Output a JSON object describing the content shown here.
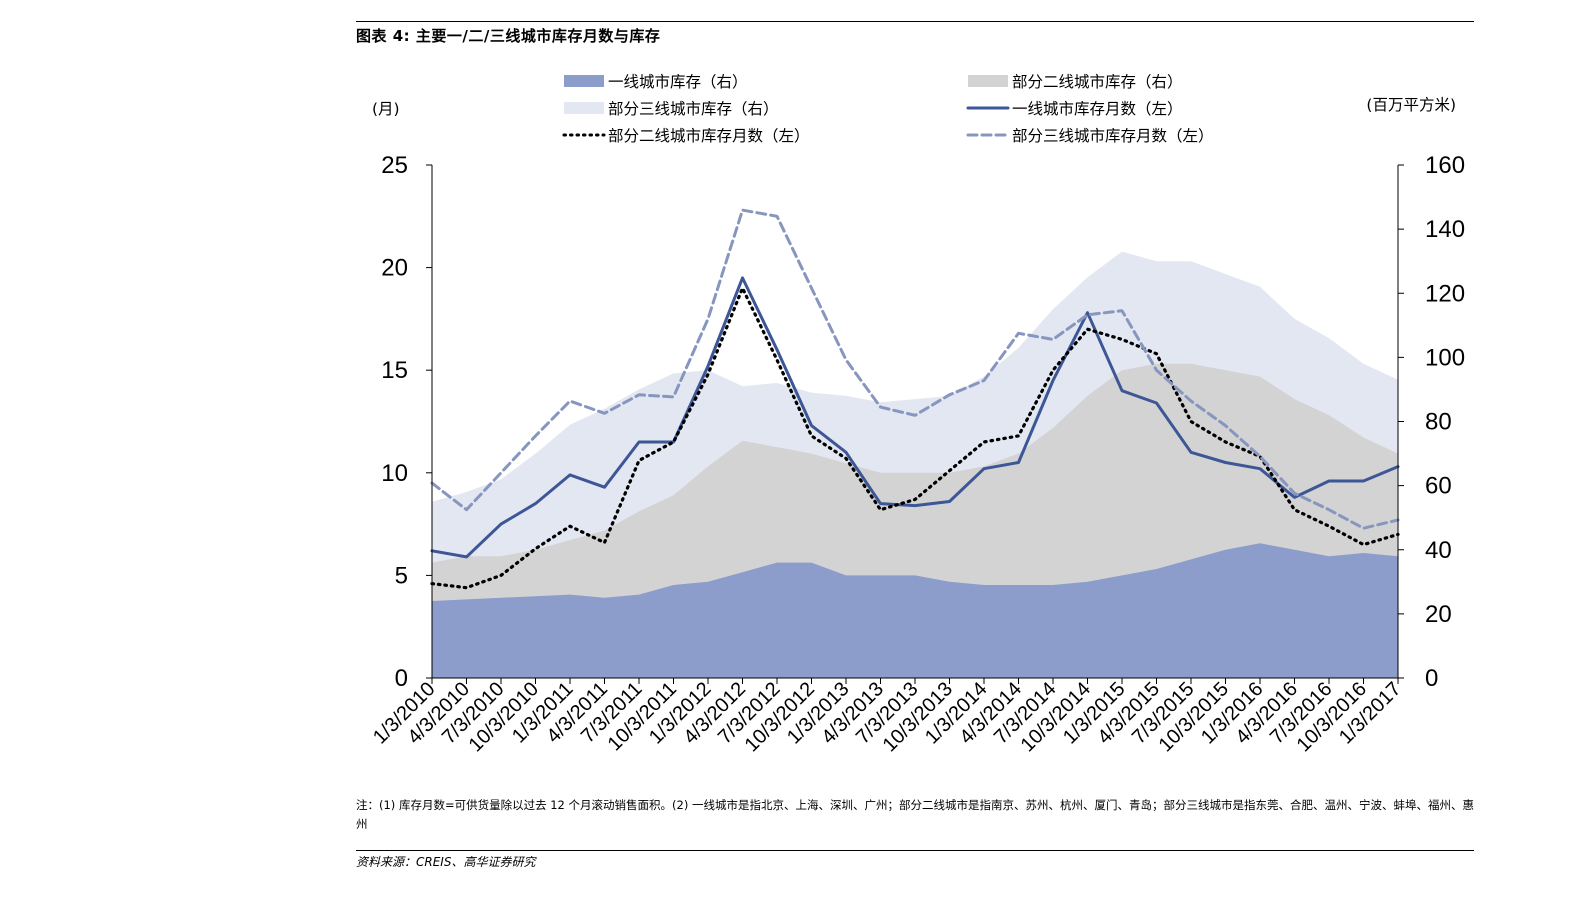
{
  "header": {
    "title": "图表 4: 主要一/二/三线城市库存月数与库存"
  },
  "footer": {
    "note": "注：(1) 库存月数=可供货量除以过去 12 个月滚动销售面积。(2) 一线城市是指北京、上海、深圳、广州；部分二线城市是指南京、苏州、杭州、厦门、青岛；部分三线城市是指东莞、合肥、温州、宁波、蚌埠、福州、惠州",
    "source": "资料来源：CREIS、高华证券研究"
  },
  "colors": {
    "tier1_area": "#8c9dcc",
    "tier2_area": "#d3d3d3",
    "tier3_area": "#e3e7f1",
    "tier1_line": "#3d5696",
    "tier2_line": "#000000",
    "tier3_line": "#8796bf",
    "axis": "#000000"
  },
  "chart_data": {
    "type": "area+line",
    "y_left_label": "(月)",
    "y_right_label": "(百万平方米)",
    "y_left_ticks": [
      "0",
      "5",
      "10",
      "15",
      "20",
      "25"
    ],
    "y_right_ticks": [
      "0",
      "20",
      "40",
      "60",
      "80",
      "100",
      "120",
      "140",
      "160"
    ],
    "ylim_left": [
      0,
      25
    ],
    "ylim_right": [
      0,
      160
    ],
    "x_tick_labels": [
      "1/3/2010",
      "4/3/2010",
      "7/3/2010",
      "10/3/2010",
      "1/3/2011",
      "4/3/2011",
      "7/3/2011",
      "10/3/2011",
      "1/3/2012",
      "4/3/2012",
      "7/3/2012",
      "10/3/2012",
      "1/3/2013",
      "4/3/2013",
      "7/3/2013",
      "10/3/2013",
      "1/3/2014",
      "4/3/2014",
      "7/3/2014",
      "10/3/2014",
      "1/3/2015",
      "4/3/2015",
      "7/3/2015",
      "10/3/2015",
      "1/3/2016",
      "4/3/2016",
      "7/3/2016",
      "10/3/2016",
      "1/3/2017"
    ],
    "x": [
      0,
      1,
      2,
      3,
      4,
      5,
      6,
      7,
      8,
      9,
      10,
      11,
      12,
      13,
      14,
      15,
      16,
      17,
      18,
      19,
      20,
      21,
      22,
      23,
      24,
      25,
      26,
      27,
      28
    ],
    "series": [
      {
        "name": "一线城市库存（右）",
        "kind": "area",
        "axis": "right",
        "values": [
          24,
          24.5,
          25,
          25.5,
          26,
          25,
          26,
          29,
          30,
          33,
          36,
          36,
          32,
          32,
          32,
          30,
          29,
          29,
          29,
          30,
          32,
          34,
          37,
          40,
          42,
          40,
          38,
          39,
          38
        ]
      },
      {
        "name": "部分二线城市库存（右）",
        "kind": "area",
        "axis": "right",
        "values": [
          36,
          38,
          38,
          40,
          43,
          46,
          52,
          57,
          66,
          74,
          72,
          70,
          67,
          64,
          64,
          64,
          66,
          70,
          78,
          88,
          96,
          98,
          98,
          96,
          94,
          87,
          82,
          75,
          70
        ]
      },
      {
        "name": "部分三线城市库存（右）",
        "kind": "area",
        "axis": "right",
        "values": [
          55,
          58,
          62,
          70,
          79,
          84,
          90,
          95,
          96,
          91,
          92,
          89,
          88,
          86,
          87,
          88,
          94,
          103,
          115,
          125,
          133,
          130,
          130,
          126,
          122,
          112,
          106,
          98,
          93
        ]
      },
      {
        "name": "一线城市库存月数（左）",
        "kind": "line",
        "axis": "left",
        "style": "solid",
        "values": [
          6.2,
          5.9,
          7.5,
          8.5,
          9.9,
          9.3,
          11.5,
          11.5,
          15.2,
          19.5,
          16,
          12.3,
          11,
          8.5,
          8.4,
          8.6,
          10.2,
          10.5,
          14.5,
          17.8,
          14,
          13.4,
          11,
          10.5,
          10.2,
          8.8,
          9.6,
          9.6,
          10.3
        ]
      },
      {
        "name": "部分二线城市库存月数（左）",
        "kind": "line",
        "axis": "left",
        "style": "dotted",
        "values": [
          4.6,
          4.4,
          5,
          6.3,
          7.4,
          6.6,
          10.6,
          11.5,
          14.8,
          19,
          15.5,
          11.8,
          10.7,
          8.2,
          8.7,
          10.1,
          11.5,
          11.8,
          15,
          17,
          16.5,
          15.8,
          12.5,
          11.5,
          10.8,
          8.2,
          7.4,
          6.5,
          7
        ]
      },
      {
        "name": "部分三线城市库存月数（左）",
        "kind": "line",
        "axis": "left",
        "style": "dashed",
        "values": [
          9.5,
          8.2,
          10,
          11.8,
          13.5,
          12.9,
          13.8,
          13.7,
          17.5,
          22.8,
          22.5,
          19,
          15.5,
          13.2,
          12.8,
          13.8,
          14.5,
          16.8,
          16.5,
          17.7,
          17.9,
          15,
          13.5,
          12.3,
          10.8,
          9,
          8.2,
          7.3,
          7.7
        ]
      }
    ],
    "legend_position": "top"
  }
}
